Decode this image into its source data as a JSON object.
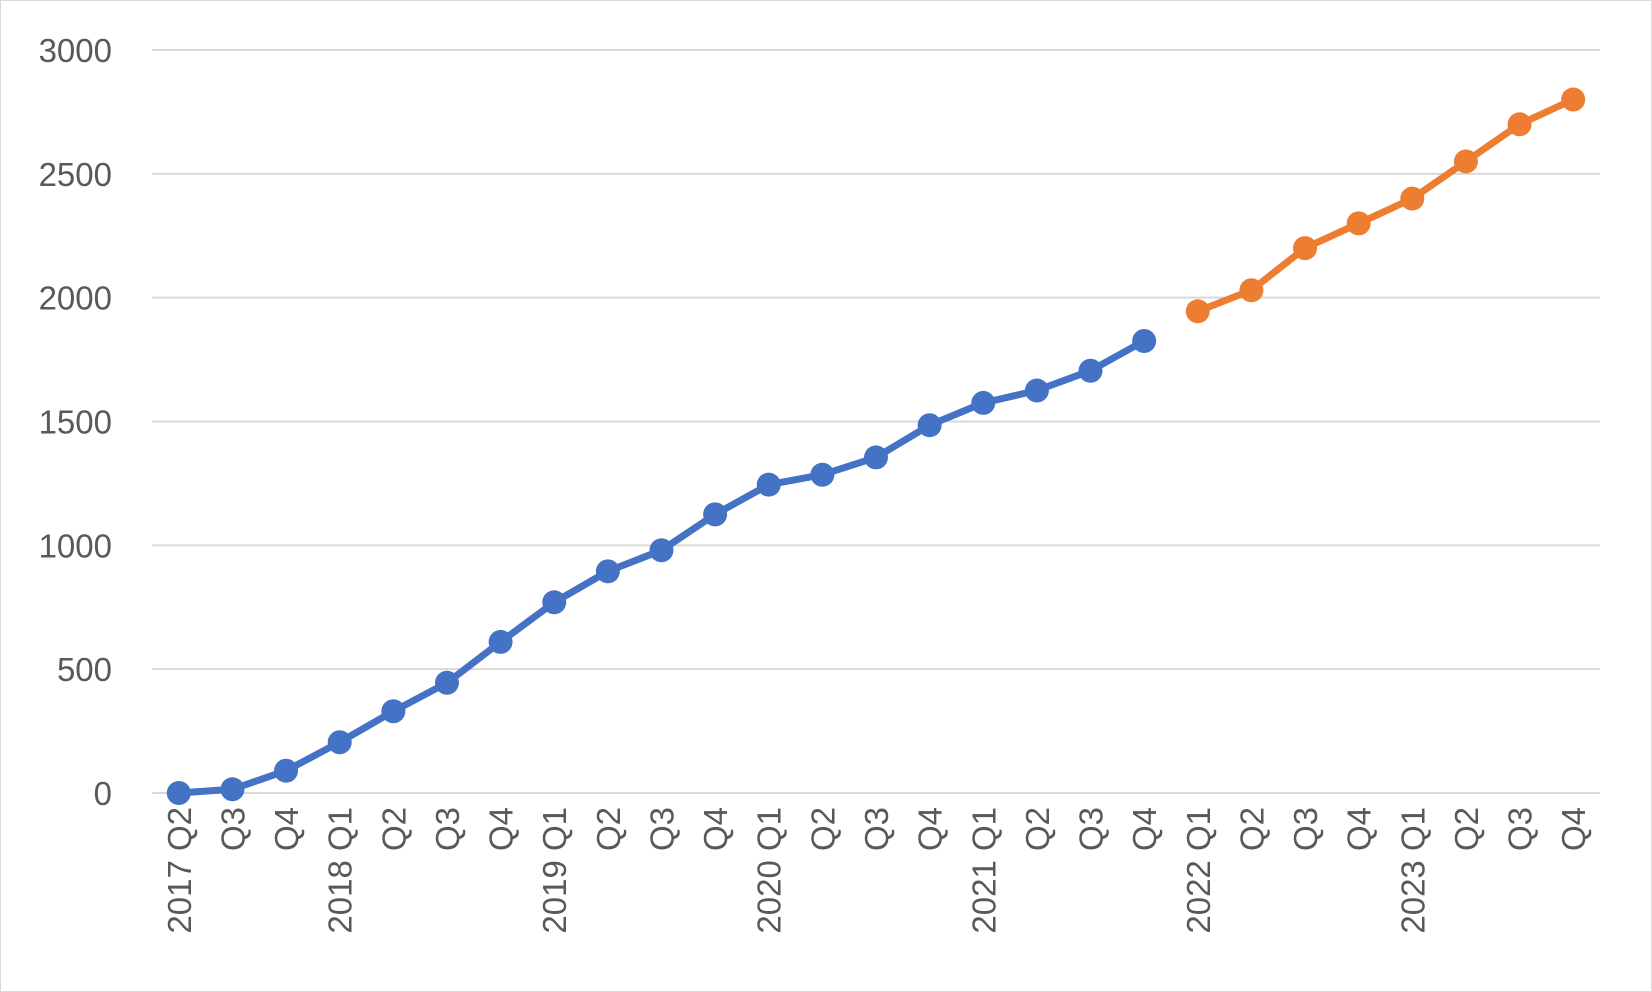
{
  "chart_data": {
    "type": "line",
    "title": "",
    "xlabel": "",
    "ylabel": "",
    "ylim": [
      0,
      3000
    ],
    "yticks": [
      0,
      500,
      1000,
      1500,
      2000,
      2500,
      3000
    ],
    "grid": true,
    "legend": "none",
    "categories": [
      "2017 Q2",
      "Q3",
      "Q4",
      "2018 Q1",
      "Q2",
      "Q3",
      "Q4",
      "2019 Q1",
      "Q2",
      "Q3",
      "Q4",
      "2020 Q1",
      "Q2",
      "Q3",
      "Q4",
      "2021 Q1",
      "Q2",
      "Q3",
      "Q4",
      "2022 Q1",
      "Q2",
      "Q3",
      "Q4",
      "2023 Q1",
      "Q2",
      "Q3",
      "Q4"
    ],
    "series": [
      {
        "color": "#4472C4",
        "values": [
          0,
          15,
          90,
          205,
          330,
          445,
          610,
          770,
          895,
          980,
          1125,
          1245,
          1285,
          1355,
          1485,
          1575,
          1625,
          1705,
          1825,
          null,
          null,
          null,
          null,
          null,
          null,
          null,
          null
        ]
      },
      {
        "color": "#ED7D31",
        "values": [
          null,
          null,
          null,
          null,
          null,
          null,
          null,
          null,
          null,
          null,
          null,
          null,
          null,
          null,
          null,
          null,
          null,
          null,
          null,
          1945,
          2030,
          2200,
          2300,
          2400,
          2550,
          2700,
          2800
        ]
      }
    ]
  },
  "colors": {
    "grid": "#d9d9d9",
    "axis_text": "#595959",
    "border": "#d9d9d9"
  }
}
